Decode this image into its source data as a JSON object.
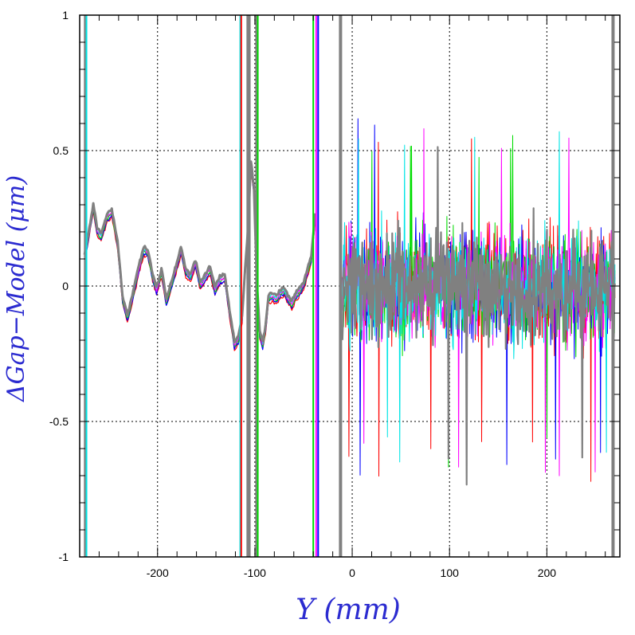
{
  "chart_data": {
    "type": "line",
    "xlabel": "Y (mm)",
    "ylabel": "ΔGap−Model (μm)",
    "xlim": [
      -280,
      275
    ],
    "ylim": [
      -1,
      1
    ],
    "x_ticks": [
      -200,
      -100,
      0,
      100,
      200
    ],
    "x_tick_labels": [
      "-200",
      "-100",
      "0",
      "100",
      "200"
    ],
    "y_ticks": [
      -1,
      -0.5,
      0,
      0.5,
      1
    ],
    "y_tick_labels": [
      "-1",
      "-0.5",
      "0",
      "0.5",
      "1"
    ],
    "grid": true,
    "series_colors": [
      "#ff0000",
      "#0000ff",
      "#00dd00",
      "#ff00ff",
      "#00e5e5",
      "#808080"
    ],
    "smooth_region_profile": {
      "x": [
        -275,
        -270,
        -266,
        -262,
        -258,
        -252,
        -247,
        -241,
        -236,
        -231,
        -226,
        -220,
        -214,
        -210,
        -205,
        -201,
        -196,
        -191,
        -186,
        -181,
        -176,
        -171,
        -166,
        -161,
        -156,
        -151,
        -146,
        -141,
        -136,
        -131,
        -126,
        -121,
        -117,
        -113,
        -110,
        -107,
        -104,
        -101,
        -98,
        -95,
        -92,
        -89,
        -86,
        -82,
        -78,
        -74,
        -70,
        -66,
        -62,
        -58,
        -54,
        -50,
        -46,
        -42,
        -38
      ],
      "y": [
        0.1,
        0.2,
        0.29,
        0.2,
        0.18,
        0.25,
        0.27,
        0.15,
        -0.05,
        -0.12,
        -0.05,
        0.05,
        0.13,
        0.12,
        0.03,
        -0.02,
        0.05,
        -0.06,
        0.0,
        0.06,
        0.13,
        0.05,
        0.03,
        0.08,
        0.0,
        0.03,
        0.06,
        -0.02,
        0.02,
        0.03,
        -0.1,
        -0.22,
        -0.2,
        -0.12,
        0.05,
        0.2,
        0.45,
        0.35,
        0.0,
        -0.18,
        -0.22,
        -0.16,
        -0.05,
        -0.04,
        -0.05,
        -0.03,
        -0.02,
        -0.05,
        -0.07,
        -0.04,
        -0.02,
        0.0,
        0.05,
        0.1,
        0.25
      ]
    },
    "noise_region": {
      "x_range": [
        -10,
        270
      ],
      "y_spread": 0.35,
      "occasional_max": 0.62,
      "occasional_min": -0.74
    },
    "spikes": [
      {
        "x": -274,
        "color": "#808080"
      },
      {
        "x": -273,
        "color": "#00e5e5"
      },
      {
        "x": -115,
        "color": "#00e5e5"
      },
      {
        "x": -114,
        "color": "#ff0000"
      },
      {
        "x": -107,
        "color": "#808080"
      },
      {
        "x": -106,
        "color": "#808080"
      },
      {
        "x": -98,
        "color": "#808080"
      },
      {
        "x": -97,
        "color": "#00dd00"
      },
      {
        "x": -40,
        "color": "#00dd00"
      },
      {
        "x": -37,
        "color": "#ff00ff"
      },
      {
        "x": -35,
        "color": "#0000ff"
      },
      {
        "x": -12,
        "color": "#808080"
      },
      {
        "x": 268,
        "color": "#808080"
      }
    ]
  }
}
